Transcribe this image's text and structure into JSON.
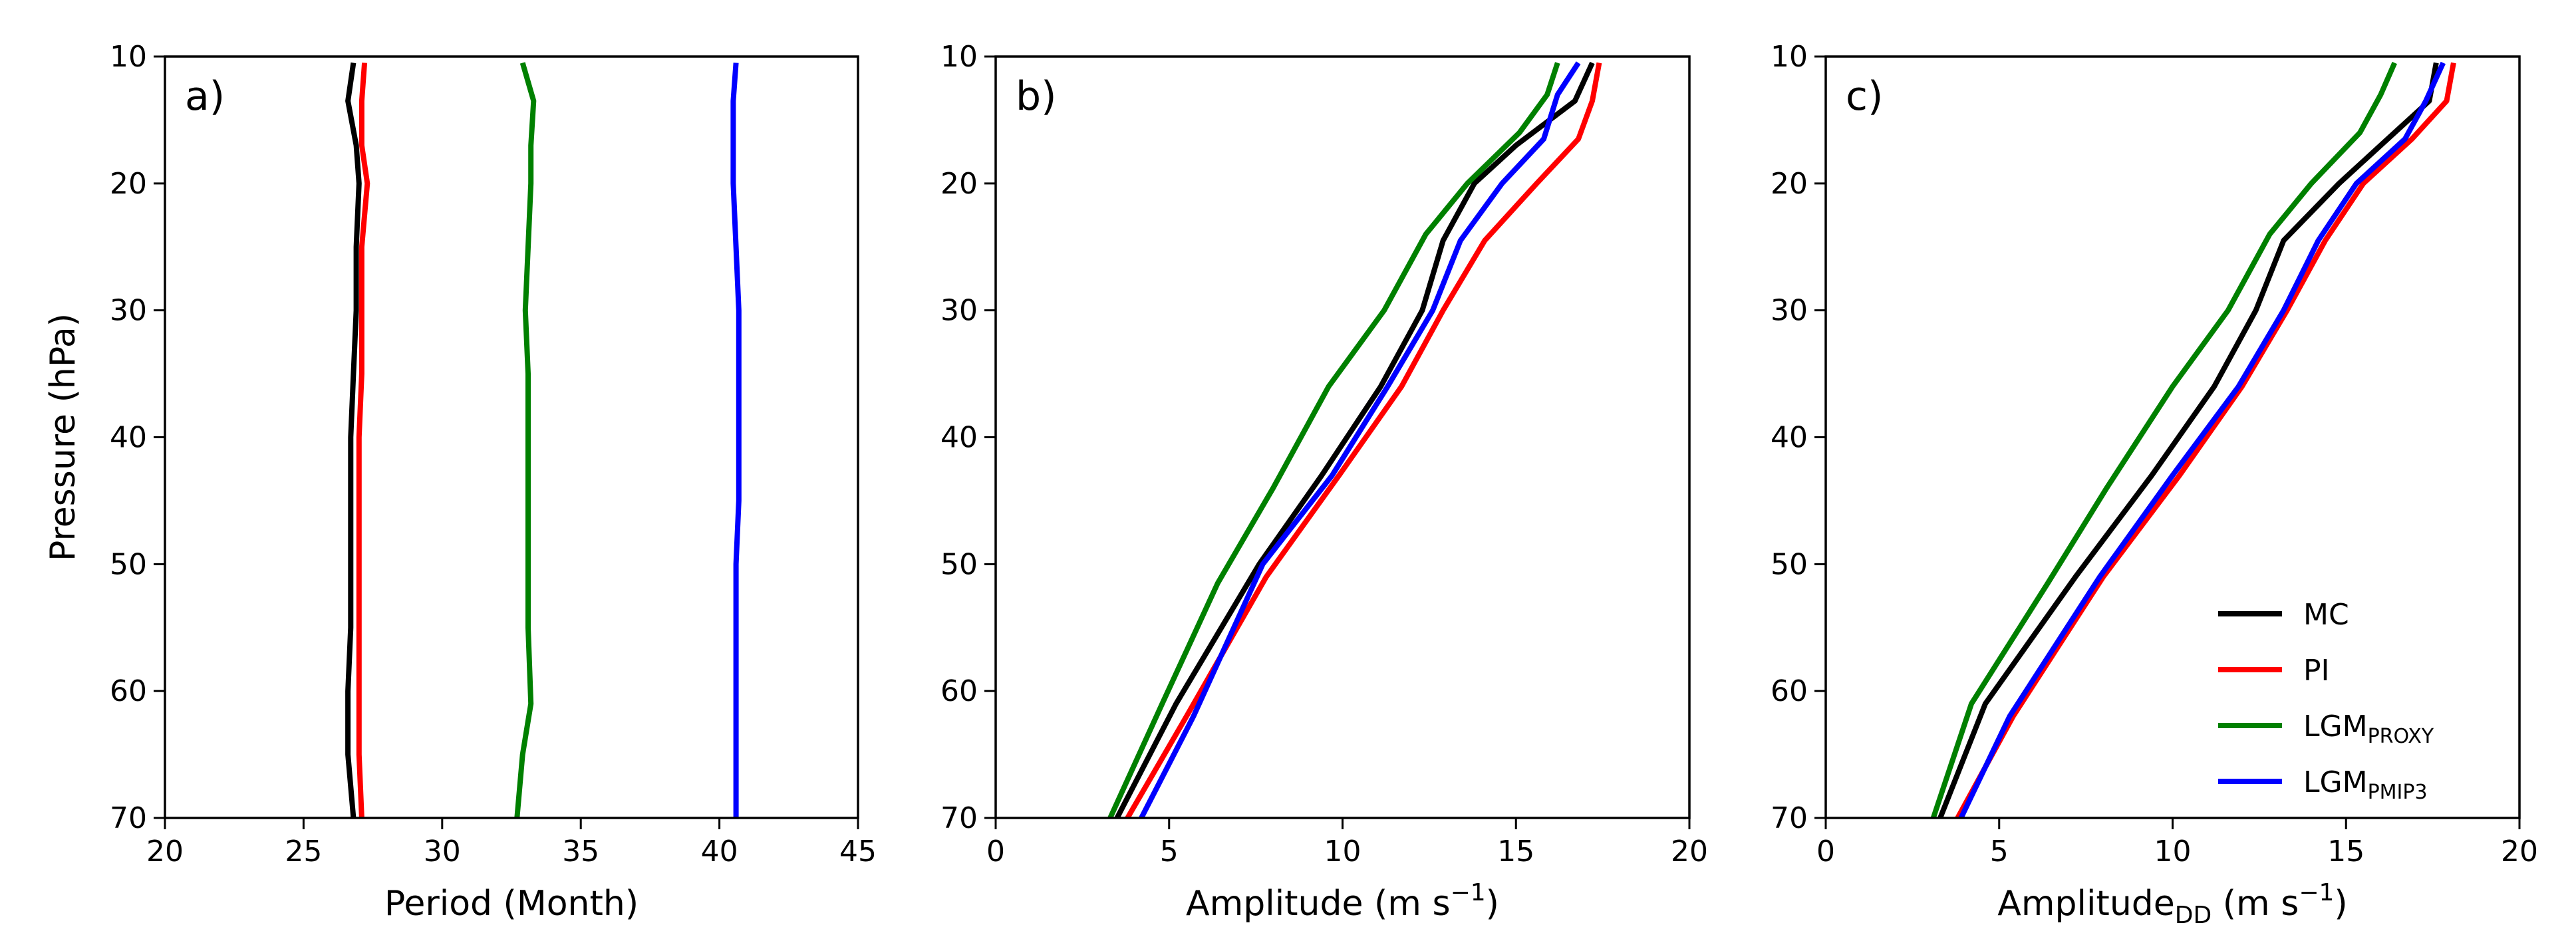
{
  "figure": {
    "ylabel": "Pressure (hPa)"
  },
  "legend": {
    "placement": "lower-right of panel c",
    "entries": [
      {
        "label": "MC",
        "sub": "",
        "color": "#000000"
      },
      {
        "label": "PI",
        "sub": "",
        "color": "#ff0000"
      },
      {
        "label": "LGM",
        "sub": "PROXY",
        "color": "#008000"
      },
      {
        "label": "LGM",
        "sub": "PMIP3",
        "color": "#0000ff"
      }
    ]
  },
  "chart_data": [
    {
      "type": "line",
      "panel_label": "a)",
      "xlabel": "Period (Month)",
      "xlabel_sub": "",
      "xlabel_unit": "",
      "ylabel": "Pressure (hPa)",
      "xlim": [
        20,
        45
      ],
      "ylim": [
        70,
        10
      ],
      "x_ticks": [
        "20",
        "25",
        "30",
        "35",
        "40",
        "45"
      ],
      "y_ticks": [
        "10",
        "20",
        "30",
        "40",
        "50",
        "60",
        "70"
      ],
      "show_ylabel": true,
      "series": [
        {
          "name": "MC",
          "color": "#000000",
          "points": [
            [
              26.8,
              10.5
            ],
            [
              26.6,
              13.5
            ],
            [
              26.9,
              17
            ],
            [
              27.0,
              20
            ],
            [
              26.9,
              25
            ],
            [
              26.9,
              30
            ],
            [
              26.8,
              35
            ],
            [
              26.7,
              40
            ],
            [
              26.7,
              45
            ],
            [
              26.7,
              50
            ],
            [
              26.7,
              55
            ],
            [
              26.6,
              60
            ],
            [
              26.6,
              65
            ],
            [
              26.8,
              70
            ]
          ]
        },
        {
          "name": "PI",
          "color": "#ff0000",
          "points": [
            [
              27.2,
              10.5
            ],
            [
              27.1,
              13.5
            ],
            [
              27.1,
              17
            ],
            [
              27.3,
              20
            ],
            [
              27.1,
              25
            ],
            [
              27.1,
              30
            ],
            [
              27.1,
              35
            ],
            [
              27.0,
              40
            ],
            [
              27.0,
              45
            ],
            [
              27.0,
              50
            ],
            [
              27.0,
              55
            ],
            [
              27.0,
              60
            ],
            [
              27.0,
              65
            ],
            [
              27.1,
              70
            ]
          ]
        },
        {
          "name": "LGM PROXY",
          "color": "#008000",
          "points": [
            [
              32.9,
              10.5
            ],
            [
              33.3,
              13.5
            ],
            [
              33.2,
              17
            ],
            [
              33.2,
              20
            ],
            [
              33.1,
              25
            ],
            [
              33.0,
              30
            ],
            [
              33.1,
              35
            ],
            [
              33.1,
              40
            ],
            [
              33.1,
              45
            ],
            [
              33.1,
              50
            ],
            [
              33.1,
              55
            ],
            [
              33.2,
              61
            ],
            [
              32.9,
              65
            ],
            [
              32.7,
              70
            ]
          ]
        },
        {
          "name": "LGM PMIP3",
          "color": "#0000ff",
          "points": [
            [
              40.6,
              10.5
            ],
            [
              40.5,
              13.5
            ],
            [
              40.5,
              17
            ],
            [
              40.5,
              20
            ],
            [
              40.6,
              25
            ],
            [
              40.7,
              30
            ],
            [
              40.7,
              35
            ],
            [
              40.7,
              40
            ],
            [
              40.7,
              45
            ],
            [
              40.6,
              50
            ],
            [
              40.6,
              55
            ],
            [
              40.6,
              60
            ],
            [
              40.6,
              65
            ],
            [
              40.6,
              70
            ]
          ]
        }
      ]
    },
    {
      "type": "line",
      "panel_label": "b)",
      "xlabel": "Amplitude (m s",
      "xlabel_sub": "",
      "xlabel_unit": "−1",
      "ylabel": "",
      "xlim": [
        0,
        20
      ],
      "ylim": [
        70,
        10
      ],
      "x_ticks": [
        "0",
        "5",
        "10",
        "15",
        "20"
      ],
      "y_ticks": [
        "10",
        "20",
        "30",
        "40",
        "50",
        "60",
        "70"
      ],
      "show_ylabel": false,
      "series": [
        {
          "name": "MC",
          "color": "#000000",
          "points": [
            [
              17.2,
              10.5
            ],
            [
              16.7,
              13.5
            ],
            [
              15.0,
              17
            ],
            [
              13.8,
              20
            ],
            [
              12.9,
              24.5
            ],
            [
              12.3,
              30
            ],
            [
              11.1,
              36
            ],
            [
              9.4,
              43
            ],
            [
              7.6,
              50
            ],
            [
              5.2,
              61
            ],
            [
              3.5,
              70
            ]
          ]
        },
        {
          "name": "PI",
          "color": "#ff0000",
          "points": [
            [
              17.4,
              10.5
            ],
            [
              17.2,
              13.5
            ],
            [
              16.8,
              16.5
            ],
            [
              15.6,
              20
            ],
            [
              14.1,
              24.5
            ],
            [
              12.9,
              30
            ],
            [
              11.7,
              36
            ],
            [
              9.9,
              43
            ],
            [
              7.8,
              51
            ],
            [
              5.5,
              62
            ],
            [
              3.8,
              70
            ]
          ]
        },
        {
          "name": "LGM PROXY",
          "color": "#008000",
          "points": [
            [
              16.2,
              10.5
            ],
            [
              15.9,
              13
            ],
            [
              15.1,
              16
            ],
            [
              13.6,
              20
            ],
            [
              12.4,
              24
            ],
            [
              11.2,
              30
            ],
            [
              9.6,
              36
            ],
            [
              8.0,
              44
            ],
            [
              6.4,
              51.5
            ],
            [
              4.8,
              61
            ],
            [
              3.3,
              70
            ]
          ]
        },
        {
          "name": "LGM PMIP3",
          "color": "#0000ff",
          "points": [
            [
              16.8,
              10.5
            ],
            [
              16.2,
              13
            ],
            [
              15.8,
              16.5
            ],
            [
              14.6,
              20
            ],
            [
              13.4,
              24.5
            ],
            [
              12.6,
              30
            ],
            [
              11.3,
              36
            ],
            [
              9.7,
              43
            ],
            [
              7.7,
              50
            ],
            [
              5.7,
              62
            ],
            [
              4.2,
              70
            ]
          ]
        }
      ]
    },
    {
      "type": "line",
      "panel_label": "c)",
      "xlabel": "Amplitude",
      "xlabel_sub": "DD",
      "xlabel_unit": "−1",
      "ylabel": "",
      "xlim": [
        0,
        20
      ],
      "ylim": [
        70,
        10
      ],
      "x_ticks": [
        "0",
        "5",
        "10",
        "15",
        "20"
      ],
      "y_ticks": [
        "10",
        "20",
        "30",
        "40",
        "50",
        "60",
        "70"
      ],
      "show_ylabel": false,
      "series": [
        {
          "name": "MC",
          "color": "#000000",
          "points": [
            [
              17.6,
              10.5
            ],
            [
              17.4,
              13.5
            ],
            [
              16.2,
              16.5
            ],
            [
              14.8,
              20
            ],
            [
              13.2,
              24.5
            ],
            [
              12.4,
              30
            ],
            [
              11.2,
              36
            ],
            [
              9.4,
              43
            ],
            [
              7.2,
              51
            ],
            [
              4.6,
              61
            ],
            [
              3.3,
              70
            ]
          ]
        },
        {
          "name": "PI",
          "color": "#ff0000",
          "points": [
            [
              18.1,
              10.5
            ],
            [
              17.9,
              13.5
            ],
            [
              16.9,
              16.5
            ],
            [
              15.5,
              20
            ],
            [
              14.4,
              24.5
            ],
            [
              13.3,
              30
            ],
            [
              12.0,
              36
            ],
            [
              10.2,
              43
            ],
            [
              8.0,
              51
            ],
            [
              5.4,
              62
            ],
            [
              3.8,
              70
            ]
          ]
        },
        {
          "name": "LGM PROXY",
          "color": "#008000",
          "points": [
            [
              16.4,
              10.5
            ],
            [
              16.0,
              13
            ],
            [
              15.4,
              16
            ],
            [
              14.0,
              20
            ],
            [
              12.8,
              24
            ],
            [
              11.6,
              30
            ],
            [
              10.0,
              36
            ],
            [
              8.1,
              44
            ],
            [
              6.4,
              51.5
            ],
            [
              4.2,
              61
            ],
            [
              3.1,
              70
            ]
          ]
        },
        {
          "name": "LGM PMIP3",
          "color": "#0000ff",
          "points": [
            [
              17.8,
              10.5
            ],
            [
              17.3,
              13.5
            ],
            [
              16.7,
              16.5
            ],
            [
              15.3,
              20
            ],
            [
              14.2,
              24.5
            ],
            [
              13.2,
              30
            ],
            [
              11.9,
              36
            ],
            [
              10.0,
              43
            ],
            [
              7.9,
              51
            ],
            [
              5.3,
              62
            ],
            [
              3.9,
              70
            ]
          ]
        }
      ]
    }
  ]
}
